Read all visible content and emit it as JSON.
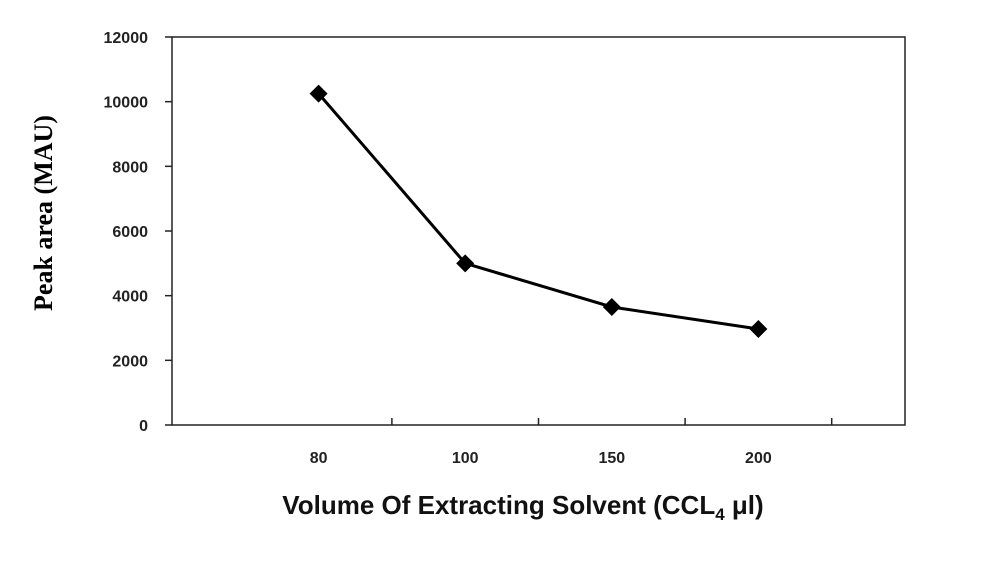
{
  "chart_data": {
    "type": "line",
    "categories": [
      "80",
      "100",
      "150",
      "200"
    ],
    "series": [
      {
        "values": [
          10250,
          5000,
          3650,
          2970
        ]
      }
    ],
    "xlabel": {
      "main": "Volume Of Extracting Solvent (CCL",
      "subscript": "4",
      "suffix": " μl)"
    },
    "ylabel": "Peak area (MAU)",
    "ylim": [
      0,
      12000
    ],
    "yticks": [
      0,
      2000,
      4000,
      6000,
      8000,
      10000,
      12000
    ],
    "ytick_labels": [
      "0",
      "2000",
      "4000",
      "6000",
      "8000",
      "10000",
      "12000"
    ],
    "marker": "diamond",
    "line_color": "#000000",
    "grid": false,
    "legend": "none"
  }
}
